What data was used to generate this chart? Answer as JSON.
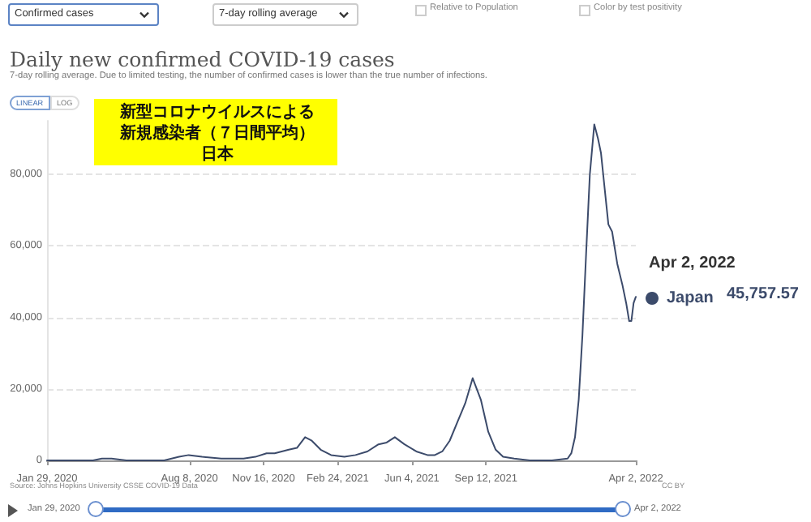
{
  "chart_data": {
    "type": "line",
    "title": "Daily new confirmed COVID-19 cases",
    "subtitle": "7-day rolling average. Due to limited testing, the number of confirmed cases is lower than the true number of infections.",
    "x": [
      "2020-01-29",
      "2020-03-01",
      "2020-03-31",
      "2020-04-12",
      "2020-04-25",
      "2020-05-15",
      "2020-06-15",
      "2020-07-05",
      "2020-07-25",
      "2020-08-07",
      "2020-08-25",
      "2020-09-20",
      "2020-10-20",
      "2020-11-05",
      "2020-11-20",
      "2020-12-01",
      "2020-12-20",
      "2020-12-31",
      "2021-01-11",
      "2021-01-20",
      "2021-02-01",
      "2021-02-15",
      "2021-03-05",
      "2021-03-20",
      "2021-04-05",
      "2021-04-20",
      "2021-05-01",
      "2021-05-12",
      "2021-05-25",
      "2021-06-10",
      "2021-06-25",
      "2021-07-05",
      "2021-07-15",
      "2021-07-25",
      "2021-08-05",
      "2021-08-15",
      "2021-08-25",
      "2021-09-05",
      "2021-09-15",
      "2021-09-25",
      "2021-10-05",
      "2021-10-20",
      "2021-11-10",
      "2021-12-10",
      "2021-12-31",
      "2022-01-05",
      "2022-01-10",
      "2022-01-15",
      "2022-01-20",
      "2022-01-25",
      "2022-01-30",
      "2022-02-05",
      "2022-02-10",
      "2022-02-14",
      "2022-02-18",
      "2022-02-24",
      "2022-03-01",
      "2022-03-08",
      "2022-03-15",
      "2022-03-20",
      "2022-03-24",
      "2022-03-27",
      "2022-03-30",
      "2022-04-02"
    ],
    "series": [
      {
        "name": "Japan",
        "color": "#3c4b6b",
        "values": [
          0,
          0,
          0,
          500,
          500,
          0,
          0,
          0,
          1000,
          1500,
          1000,
          500,
          500,
          1000,
          2000,
          2000,
          3000,
          3500,
          6500,
          5500,
          3000,
          1500,
          1000,
          1500,
          2500,
          4500,
          5000,
          6500,
          4500,
          2500,
          1500,
          1500,
          2500,
          5500,
          11000,
          16000,
          23000,
          17000,
          8000,
          3000,
          1000,
          500,
          0,
          0,
          500,
          2000,
          6500,
          17000,
          35000,
          58000,
          80000,
          94000,
          90000,
          86000,
          78000,
          66000,
          64000,
          55000,
          49000,
          44000,
          39000,
          39000,
          44000,
          45757.57
        ]
      }
    ],
    "xlim": [
      "2020-01-29",
      "2022-04-02"
    ],
    "xticks": [
      {
        "value": "2020-01-29",
        "label": "Jan 29, 2020"
      },
      {
        "value": "2020-08-08",
        "label": "Aug 8, 2020"
      },
      {
        "value": "2020-11-16",
        "label": "Nov 16, 2020"
      },
      {
        "value": "2021-02-24",
        "label": "Feb 24, 2021"
      },
      {
        "value": "2021-06-04",
        "label": "Jun 4, 2021"
      },
      {
        "value": "2021-09-12",
        "label": "Sep 12, 2021"
      },
      {
        "value": "2022-04-02",
        "label": "Apr 2, 2022"
      }
    ],
    "ylim": [
      0,
      95000
    ],
    "yticks": [
      0,
      {
        "value": 20000,
        "label": "20,000"
      },
      {
        "value": 40000,
        "label": "40,000"
      },
      {
        "value": 60000,
        "label": "60,000"
      },
      {
        "value": 80000,
        "label": "80,000"
      }
    ],
    "grid": "y",
    "legend": "right",
    "marker": "none",
    "annotations": [
      "Confirmed cases",
      "7-day rolling average",
      "Relative to Population",
      "Color by test positivity",
      "LINEAR",
      "LOG",
      "新型コロナウイルスによる新規感染者（７日間平均）日本",
      "Source: Johns Hopkins University CSSE COVID-19 Data",
      "CC BY",
      "Jan 29, 2020",
      "Apr 2, 2022",
      {
        "text": "Apr 2, 2022",
        "x": "2022-04-02",
        "y": 45757.57
      },
      "45,757.57"
    ]
  }
}
